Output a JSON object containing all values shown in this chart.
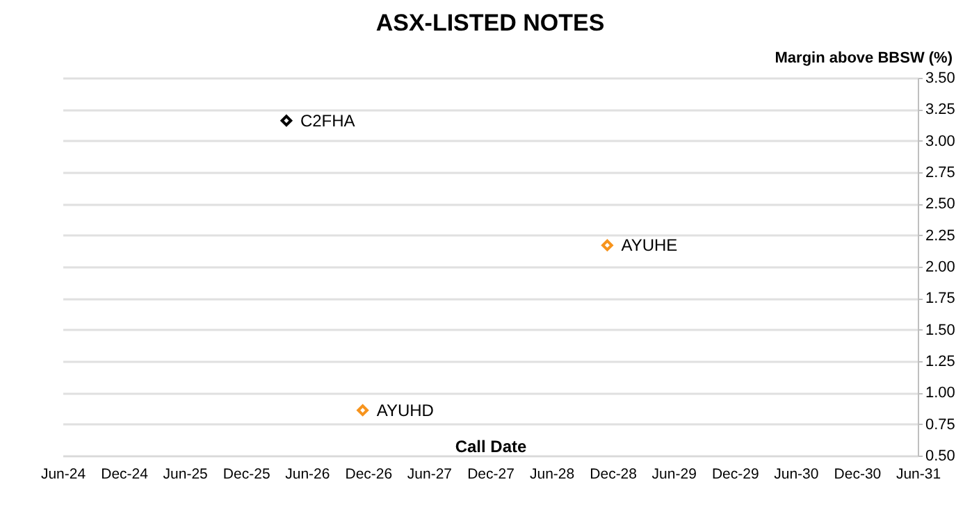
{
  "chart_data": {
    "type": "scatter",
    "title": "ASX-LISTED NOTES",
    "xlabel": "Call Date",
    "ylabel": "Margin above BBSW (%)",
    "x": [
      "2026-04-01",
      "2026-11-15",
      "2028-11-15"
    ],
    "values": [
      3.16,
      0.86,
      2.17
    ],
    "colors": [
      "#000000",
      "#f7941d",
      "#f7941d"
    ],
    "marker": "diamond",
    "annotations": [
      {
        "text": "C2FHA",
        "x": "2026-04-01",
        "y": 3.16
      },
      {
        "text": "AYUHD",
        "x": "2026-11-15",
        "y": 0.86
      },
      {
        "text": "AYUHE",
        "x": "2028-11-15",
        "y": 2.17
      }
    ],
    "xlim": [
      "2024-06-01",
      "2031-06-01"
    ],
    "xticks": [
      {
        "value": "2024-06-01",
        "label": "Jun-24"
      },
      {
        "value": "2024-12-01",
        "label": "Dec-24"
      },
      {
        "value": "2025-06-01",
        "label": "Jun-25"
      },
      {
        "value": "2025-12-01",
        "label": "Dec-25"
      },
      {
        "value": "2026-06-01",
        "label": "Jun-26"
      },
      {
        "value": "2026-12-01",
        "label": "Dec-26"
      },
      {
        "value": "2027-06-01",
        "label": "Jun-27"
      },
      {
        "value": "2027-12-01",
        "label": "Dec-27"
      },
      {
        "value": "2028-06-01",
        "label": "Jun-28"
      },
      {
        "value": "2028-12-01",
        "label": "Dec-28"
      },
      {
        "value": "2029-06-01",
        "label": "Jun-29"
      },
      {
        "value": "2029-12-01",
        "label": "Dec-29"
      },
      {
        "value": "2030-06-01",
        "label": "Jun-30"
      },
      {
        "value": "2030-12-01",
        "label": "Dec-30"
      },
      {
        "value": "2031-06-01",
        "label": "Jun-31"
      }
    ],
    "ylim": [
      0.5,
      3.5
    ],
    "yticks": [
      {
        "value": 0.5,
        "label": "0.50"
      },
      {
        "value": 0.75,
        "label": "0.75"
      },
      {
        "value": 1.0,
        "label": "1.00"
      },
      {
        "value": 1.25,
        "label": "1.25"
      },
      {
        "value": 1.5,
        "label": "1.50"
      },
      {
        "value": 1.75,
        "label": "1.75"
      },
      {
        "value": 2.0,
        "label": "2.00"
      },
      {
        "value": 2.25,
        "label": "2.25"
      },
      {
        "value": 2.5,
        "label": "2.50"
      },
      {
        "value": 2.75,
        "label": "2.75"
      },
      {
        "value": 3.0,
        "label": "3.00"
      },
      {
        "value": 3.25,
        "label": "3.25"
      },
      {
        "value": 3.5,
        "label": "3.50"
      }
    ],
    "grid": "y"
  }
}
